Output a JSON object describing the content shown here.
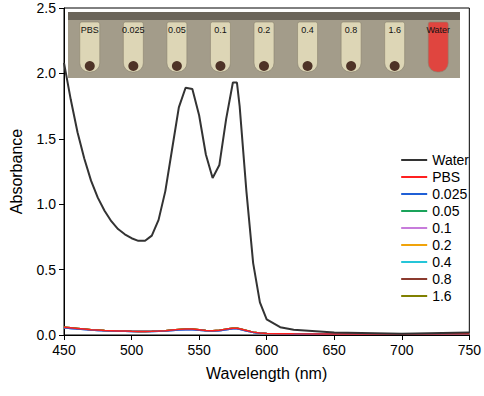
{
  "chart_data": {
    "type": "line",
    "x_label": "Wavelength (nm)",
    "y_label": "Absorbance",
    "annotations": [
      "PBS",
      "0.025",
      "0.05",
      "0.1",
      "0.2",
      "0.4",
      "0.8",
      "1.6",
      "Water"
    ],
    "x": [
      450,
      455,
      460,
      465,
      470,
      475,
      480,
      485,
      490,
      495,
      500,
      505,
      510,
      515,
      520,
      525,
      530,
      535,
      540,
      545,
      550,
      555,
      560,
      565,
      570,
      575,
      578,
      580,
      585,
      590,
      595,
      600,
      610,
      620,
      650,
      700,
      750
    ],
    "series": [
      {
        "name": "Water",
        "color": "#333333",
        "values": [
          2.08,
          1.8,
          1.55,
          1.35,
          1.18,
          1.05,
          0.95,
          0.87,
          0.81,
          0.77,
          0.74,
          0.72,
          0.72,
          0.76,
          0.88,
          1.1,
          1.42,
          1.74,
          1.89,
          1.88,
          1.68,
          1.38,
          1.2,
          1.3,
          1.65,
          1.93,
          1.93,
          1.75,
          1.1,
          0.55,
          0.25,
          0.12,
          0.06,
          0.04,
          0.02,
          0.01,
          0.02
        ]
      },
      {
        "name": "PBS",
        "color": "#ff2020",
        "values": [
          0.06,
          0.055,
          0.05,
          0.045,
          0.04,
          0.038,
          0.035,
          0.033,
          0.03,
          0.03,
          0.028,
          0.027,
          0.027,
          0.028,
          0.03,
          0.033,
          0.038,
          0.043,
          0.046,
          0.045,
          0.04,
          0.035,
          0.033,
          0.036,
          0.045,
          0.052,
          0.052,
          0.048,
          0.035,
          0.022,
          0.015,
          0.012,
          0.01,
          0.009,
          0.008,
          0.008,
          0.01
        ]
      },
      {
        "name": "0.025",
        "color": "#1f5fd6",
        "values": [
          0.055,
          0.05,
          0.046,
          0.042,
          0.038,
          0.035,
          0.033,
          0.031,
          0.029,
          0.028,
          0.027,
          0.026,
          0.026,
          0.027,
          0.029,
          0.031,
          0.035,
          0.039,
          0.041,
          0.04,
          0.036,
          0.032,
          0.03,
          0.033,
          0.041,
          0.047,
          0.047,
          0.043,
          0.031,
          0.02,
          0.014,
          0.011,
          0.009,
          0.008,
          0.007,
          0.007,
          0.009
        ]
      },
      {
        "name": "0.05",
        "color": "#1aa35a",
        "values": [
          0.06,
          0.055,
          0.05,
          0.045,
          0.04,
          0.038,
          0.035,
          0.033,
          0.03,
          0.03,
          0.028,
          0.027,
          0.027,
          0.028,
          0.03,
          0.033,
          0.038,
          0.043,
          0.046,
          0.045,
          0.04,
          0.035,
          0.033,
          0.036,
          0.045,
          0.052,
          0.052,
          0.048,
          0.035,
          0.022,
          0.015,
          0.012,
          0.01,
          0.009,
          0.008,
          0.008,
          0.01
        ]
      },
      {
        "name": "0.1",
        "color": "#c77cdb",
        "values": [
          0.055,
          0.05,
          0.046,
          0.042,
          0.038,
          0.035,
          0.033,
          0.031,
          0.029,
          0.028,
          0.027,
          0.026,
          0.026,
          0.027,
          0.029,
          0.031,
          0.035,
          0.039,
          0.041,
          0.04,
          0.036,
          0.032,
          0.03,
          0.033,
          0.041,
          0.047,
          0.047,
          0.043,
          0.031,
          0.02,
          0.014,
          0.011,
          0.009,
          0.008,
          0.007,
          0.007,
          0.009
        ]
      },
      {
        "name": "0.2",
        "color": "#f0a30a",
        "values": [
          0.06,
          0.055,
          0.05,
          0.045,
          0.04,
          0.038,
          0.035,
          0.033,
          0.03,
          0.03,
          0.028,
          0.027,
          0.027,
          0.028,
          0.03,
          0.033,
          0.038,
          0.043,
          0.046,
          0.045,
          0.04,
          0.035,
          0.033,
          0.036,
          0.045,
          0.052,
          0.052,
          0.048,
          0.035,
          0.022,
          0.015,
          0.012,
          0.01,
          0.009,
          0.008,
          0.008,
          0.01
        ]
      },
      {
        "name": "0.4",
        "color": "#25c5d8",
        "values": [
          0.055,
          0.05,
          0.046,
          0.042,
          0.038,
          0.035,
          0.033,
          0.031,
          0.029,
          0.028,
          0.027,
          0.026,
          0.026,
          0.027,
          0.029,
          0.031,
          0.035,
          0.039,
          0.041,
          0.04,
          0.036,
          0.032,
          0.03,
          0.033,
          0.041,
          0.047,
          0.047,
          0.043,
          0.031,
          0.02,
          0.014,
          0.011,
          0.009,
          0.008,
          0.007,
          0.007,
          0.009
        ]
      },
      {
        "name": "0.8",
        "color": "#8b3a2e",
        "values": [
          0.06,
          0.055,
          0.05,
          0.045,
          0.04,
          0.038,
          0.035,
          0.033,
          0.03,
          0.03,
          0.028,
          0.027,
          0.027,
          0.028,
          0.03,
          0.033,
          0.038,
          0.043,
          0.046,
          0.045,
          0.04,
          0.035,
          0.033,
          0.036,
          0.045,
          0.052,
          0.052,
          0.048,
          0.035,
          0.022,
          0.015,
          0.012,
          0.01,
          0.009,
          0.008,
          0.008,
          0.01
        ]
      },
      {
        "name": "1.6",
        "color": "#808000",
        "values": [
          0.06,
          0.055,
          0.05,
          0.045,
          0.04,
          0.038,
          0.035,
          0.033,
          0.03,
          0.03,
          0.028,
          0.027,
          0.027,
          0.028,
          0.03,
          0.033,
          0.038,
          0.043,
          0.046,
          0.045,
          0.04,
          0.035,
          0.033,
          0.036,
          0.045,
          0.052,
          0.052,
          0.048,
          0.035,
          0.022,
          0.015,
          0.012,
          0.01,
          0.009,
          0.008,
          0.008,
          0.01
        ]
      }
    ],
    "xlim": [
      450,
      750
    ],
    "xticks": [
      450,
      500,
      550,
      600,
      650,
      700,
      750
    ],
    "ylim": [
      0,
      2.5
    ],
    "yticks": [
      {
        "value": 0,
        "label": "0.0"
      },
      {
        "value": 0.5,
        "label": "0.5"
      },
      {
        "value": 1,
        "label": "1.0"
      },
      {
        "value": 1.5,
        "label": "1.5"
      },
      {
        "value": 2,
        "label": "2.0"
      },
      {
        "value": 2.5,
        "label": "2.5"
      }
    ],
    "legend": "right",
    "grid": false
  }
}
